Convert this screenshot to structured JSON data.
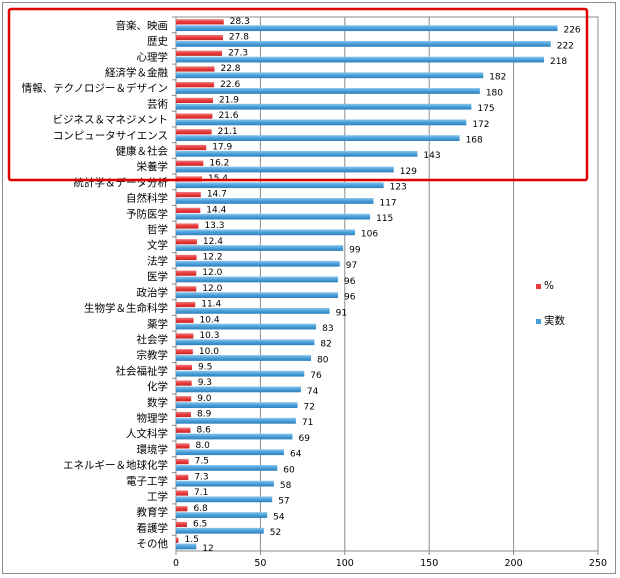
{
  "chart_data": {
    "type": "bar",
    "orientation": "horizontal",
    "categories": [
      "音楽、映画",
      "歴史",
      "心理学",
      "経済学＆金融",
      "情報、テクノロジー＆デザイン",
      "芸術",
      "ビジネス＆マネジメント",
      "コンピュータサイエンス",
      "健康＆社会",
      "栄養学",
      "統計学＆データ分析",
      "自然科学",
      "予防医学",
      "哲学",
      "文学",
      "法学",
      "医学",
      "政治学",
      "生物学＆生命科学",
      "薬学",
      "社会学",
      "宗教学",
      "社会福祉学",
      "化学",
      "数学",
      "物理学",
      "人文科学",
      "環境学",
      "エネルギー＆地球化学",
      "電子工学",
      "工学",
      "教育学",
      "看護学",
      "その他"
    ],
    "series": [
      {
        "name": "%",
        "color": "#e8393a",
        "values": [
          28.3,
          27.8,
          27.3,
          22.8,
          22.6,
          21.9,
          21.6,
          21.1,
          17.9,
          16.2,
          15.4,
          14.7,
          14.4,
          13.3,
          12.4,
          12.2,
          12.0,
          12.0,
          11.4,
          10.4,
          10.3,
          10.0,
          9.5,
          9.3,
          9.0,
          8.9,
          8.6,
          8.0,
          7.5,
          7.3,
          7.1,
          6.8,
          6.5,
          1.5
        ]
      },
      {
        "name": "実数",
        "color": "#4a9fd8",
        "values": [
          226,
          222,
          218,
          182,
          180,
          175,
          172,
          168,
          143,
          129,
          123,
          117,
          115,
          106,
          99,
          97,
          96,
          96,
          91,
          83,
          82,
          80,
          76,
          74,
          72,
          71,
          69,
          64,
          60,
          58,
          57,
          54,
          52,
          12
        ]
      }
    ],
    "xlim": [
      0,
      250
    ],
    "xticks": [
      "0",
      "50",
      "100",
      "150",
      "200",
      "250"
    ],
    "grid": true,
    "legend_position": "right",
    "highlight_color": "#e00000",
    "highlight_rows": 10
  }
}
